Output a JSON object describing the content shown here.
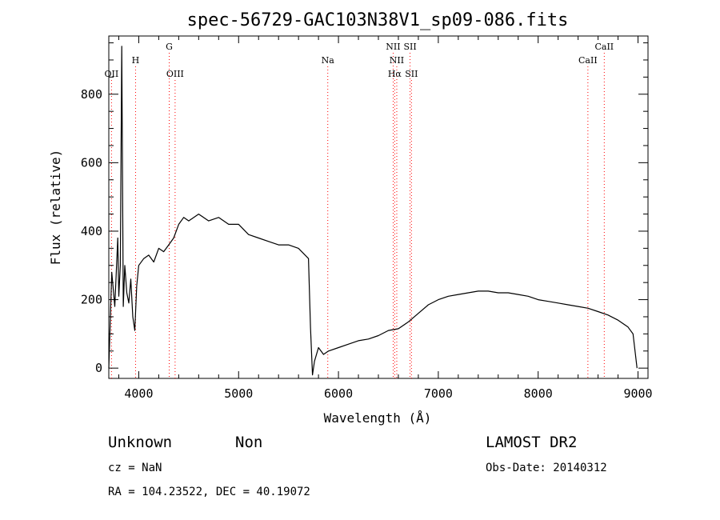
{
  "chart_data": {
    "type": "line",
    "title": "spec-56729-GAC103N38V1_sp09-086.fits",
    "xlabel": "Wavelength (Å)",
    "ylabel": "Flux (relative)",
    "xlim": [
      3700,
      9100
    ],
    "ylim": [
      -30,
      970
    ],
    "x_ticks": [
      4000,
      5000,
      6000,
      7000,
      8000,
      9000
    ],
    "x_tick_labels": [
      "4000",
      "5000",
      "6000",
      "7000",
      "8000",
      "9000"
    ],
    "y_ticks": [
      0,
      200,
      400,
      600,
      800
    ],
    "y_tick_labels": [
      "0",
      "200",
      "400",
      "600",
      "800"
    ],
    "grid": false,
    "line_color": "#000000",
    "marker_color": "#ff0000",
    "series": [
      {
        "x": [
          3700,
          3730,
          3760,
          3790,
          3800,
          3815,
          3830,
          3845,
          3860,
          3880,
          3900,
          3920,
          3940,
          3960,
          3980,
          4000,
          4050,
          4100,
          4150,
          4200,
          4250,
          4300,
          4350,
          4400,
          4450,
          4500,
          4600,
          4700,
          4800,
          4900,
          5000,
          5100,
          5200,
          5300,
          5400,
          5500,
          5600,
          5700,
          5720,
          5740,
          5760,
          5800,
          5850,
          5900,
          6000,
          6100,
          6200,
          6300,
          6400,
          6500,
          6600,
          6700,
          6800,
          6900,
          7000,
          7100,
          7200,
          7300,
          7400,
          7500,
          7600,
          7700,
          7800,
          7900,
          8000,
          8100,
          8200,
          8300,
          8400,
          8500,
          8600,
          8700,
          8800,
          8900,
          8950,
          8990
        ],
        "y": [
          0,
          280,
          180,
          380,
          210,
          300,
          940,
          180,
          300,
          220,
          190,
          260,
          150,
          110,
          240,
          300,
          320,
          330,
          310,
          350,
          340,
          360,
          380,
          420,
          440,
          430,
          450,
          430,
          440,
          420,
          420,
          390,
          380,
          370,
          360,
          360,
          350,
          320,
          120,
          -20,
          20,
          60,
          40,
          50,
          60,
          70,
          80,
          85,
          95,
          110,
          115,
          135,
          160,
          185,
          200,
          210,
          215,
          220,
          225,
          225,
          220,
          220,
          215,
          210,
          200,
          195,
          190,
          185,
          180,
          175,
          165,
          155,
          140,
          120,
          100,
          0
        ]
      }
    ],
    "lines": [
      {
        "label": "OII",
        "x": 3727,
        "row": 3
      },
      {
        "label": "H",
        "x": 3968,
        "row": 2
      },
      {
        "label": "G",
        "x": 4305,
        "row": 1
      },
      {
        "label": "OIII",
        "x": 4364,
        "row": 3
      },
      {
        "label": "Na",
        "x": 5893,
        "row": 2
      },
      {
        "label": "NII",
        "x": 6548,
        "row": 1
      },
      {
        "label": "NII",
        "x": 6584,
        "row": 2
      },
      {
        "label": "Hα",
        "x": 6563,
        "row": 3
      },
      {
        "label": "SII",
        "x": 6717,
        "row": 1
      },
      {
        "label": "SII",
        "x": 6731,
        "row": 3
      },
      {
        "label": "CaII",
        "x": 8498,
        "row": 2
      },
      {
        "label": "CaII",
        "x": 8662,
        "row": 1
      }
    ]
  },
  "info": {
    "classification": "Unknown",
    "subclass": "Non",
    "survey": "LAMOST DR2",
    "redshift": "cz = NaN",
    "obs_date": "Obs-Date: 20140312",
    "coords": "RA = 104.23522, DEC =  40.19072"
  }
}
